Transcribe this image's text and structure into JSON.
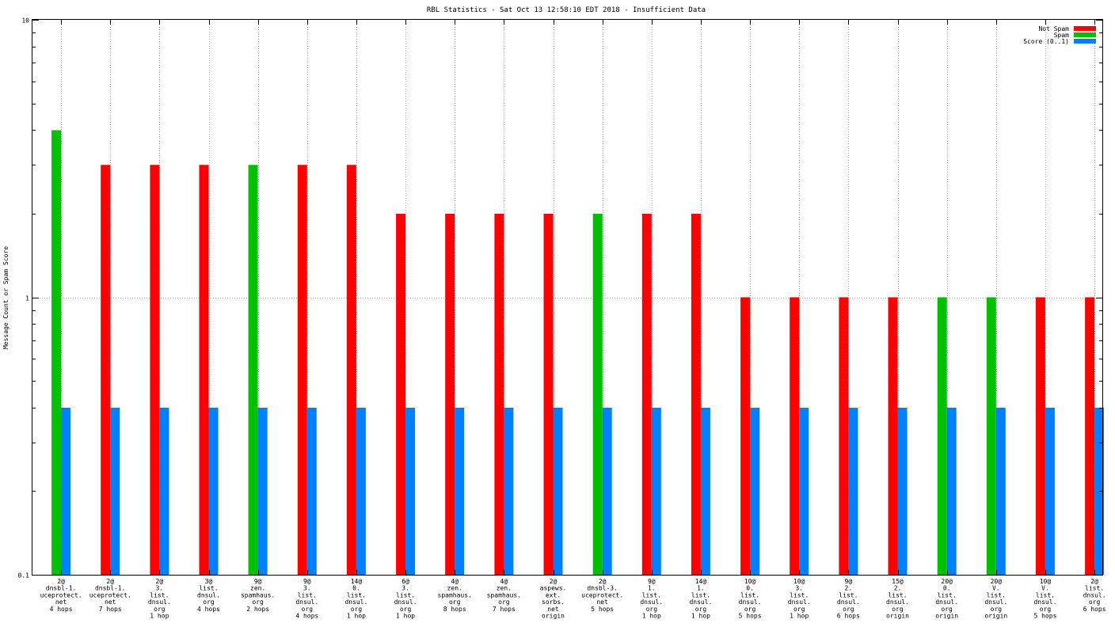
{
  "chart_data": {
    "type": "bar",
    "title": "RBL Statistics - Sat Oct 13 12:58:10 EDT 2018 - Insufficient Data",
    "xlabel": "",
    "ylabel": "Message Count or Spam Score",
    "yscale": "log",
    "ylim": [
      0.1,
      10
    ],
    "yticks": [
      "0.1",
      "1",
      "10"
    ],
    "grid": true,
    "legend_position": "top-right",
    "categories": [
      [
        "2@",
        "dnsbl-1.",
        "uceprotect.",
        "net",
        "4 hops"
      ],
      [
        "2@",
        "dnsbl-1.",
        "uceprotect.",
        "net",
        "7 hops"
      ],
      [
        "2@",
        "3.",
        "list.",
        "dnsul.",
        "org",
        "1 hop"
      ],
      [
        "3@",
        "list.",
        "dnsul.",
        "org",
        "4 hops"
      ],
      [
        "9@",
        "zen.",
        "spamhaus.",
        "org",
        "2 hops"
      ],
      [
        "9@",
        "3.",
        "list.",
        "dnsul.",
        "org",
        "4 hops"
      ],
      [
        "14@",
        "0.",
        "list.",
        "dnsul.",
        "org",
        "1 hop"
      ],
      [
        "6@",
        "3.",
        "list.",
        "dnsul.",
        "org",
        "1 hop"
      ],
      [
        "4@",
        "zen.",
        "spamhaus.",
        "org",
        "8 hops"
      ],
      [
        "4@",
        "zen.",
        "spamhaus.",
        "org",
        "7 hops"
      ],
      [
        "2@",
        "aspews.",
        "ext.",
        "sorbs.",
        "net",
        "origin"
      ],
      [
        "2@",
        "dnsbl-3.",
        "uceprotect.",
        "net",
        "5 hops"
      ],
      [
        "9@",
        "1.",
        "list.",
        "dnsul.",
        "org",
        "1 hop"
      ],
      [
        "14@",
        "1.",
        "list.",
        "dnsul.",
        "org",
        "1 hop"
      ],
      [
        "10@",
        "0.",
        "list.",
        "dnsul.",
        "org",
        "5 hops"
      ],
      [
        "10@",
        "3.",
        "list.",
        "dnsul.",
        "org",
        "1 hop"
      ],
      [
        "9@",
        "2.",
        "list.",
        "dnsul.",
        "org",
        "6 hops"
      ],
      [
        "15@",
        "2.",
        "list.",
        "dnsul.",
        "org",
        "origin"
      ],
      [
        "20@",
        "0.",
        "list.",
        "dnsul.",
        "org",
        "origin"
      ],
      [
        "20@",
        "V.",
        "list.",
        "dnsul.",
        "org",
        "origin"
      ],
      [
        "10@",
        "V.",
        "list.",
        "dnsul.",
        "org",
        "5 hops"
      ],
      [
        "2@",
        "list.",
        "dnsul.",
        "org",
        "6 hops"
      ]
    ],
    "series": [
      {
        "name": "Not Spam",
        "color": "#ff0000",
        "values": [
          null,
          3,
          3,
          3,
          null,
          3,
          3,
          2,
          2,
          2,
          2,
          null,
          2,
          2,
          1,
          1,
          1,
          1,
          null,
          null,
          1,
          1
        ]
      },
      {
        "name": "Spam",
        "color": "#00c000",
        "values": [
          4,
          null,
          null,
          null,
          3,
          null,
          null,
          null,
          null,
          null,
          null,
          2,
          null,
          null,
          null,
          null,
          null,
          null,
          1,
          1,
          null,
          null
        ]
      },
      {
        "name": "Score (0..1)",
        "color": "#0080ff",
        "values": [
          0.4,
          0.4,
          0.4,
          0.4,
          0.4,
          0.4,
          0.4,
          0.4,
          0.4,
          0.4,
          0.4,
          0.4,
          0.4,
          0.4,
          0.4,
          0.4,
          0.4,
          0.4,
          0.4,
          0.4,
          0.4,
          0.4
        ]
      }
    ]
  }
}
